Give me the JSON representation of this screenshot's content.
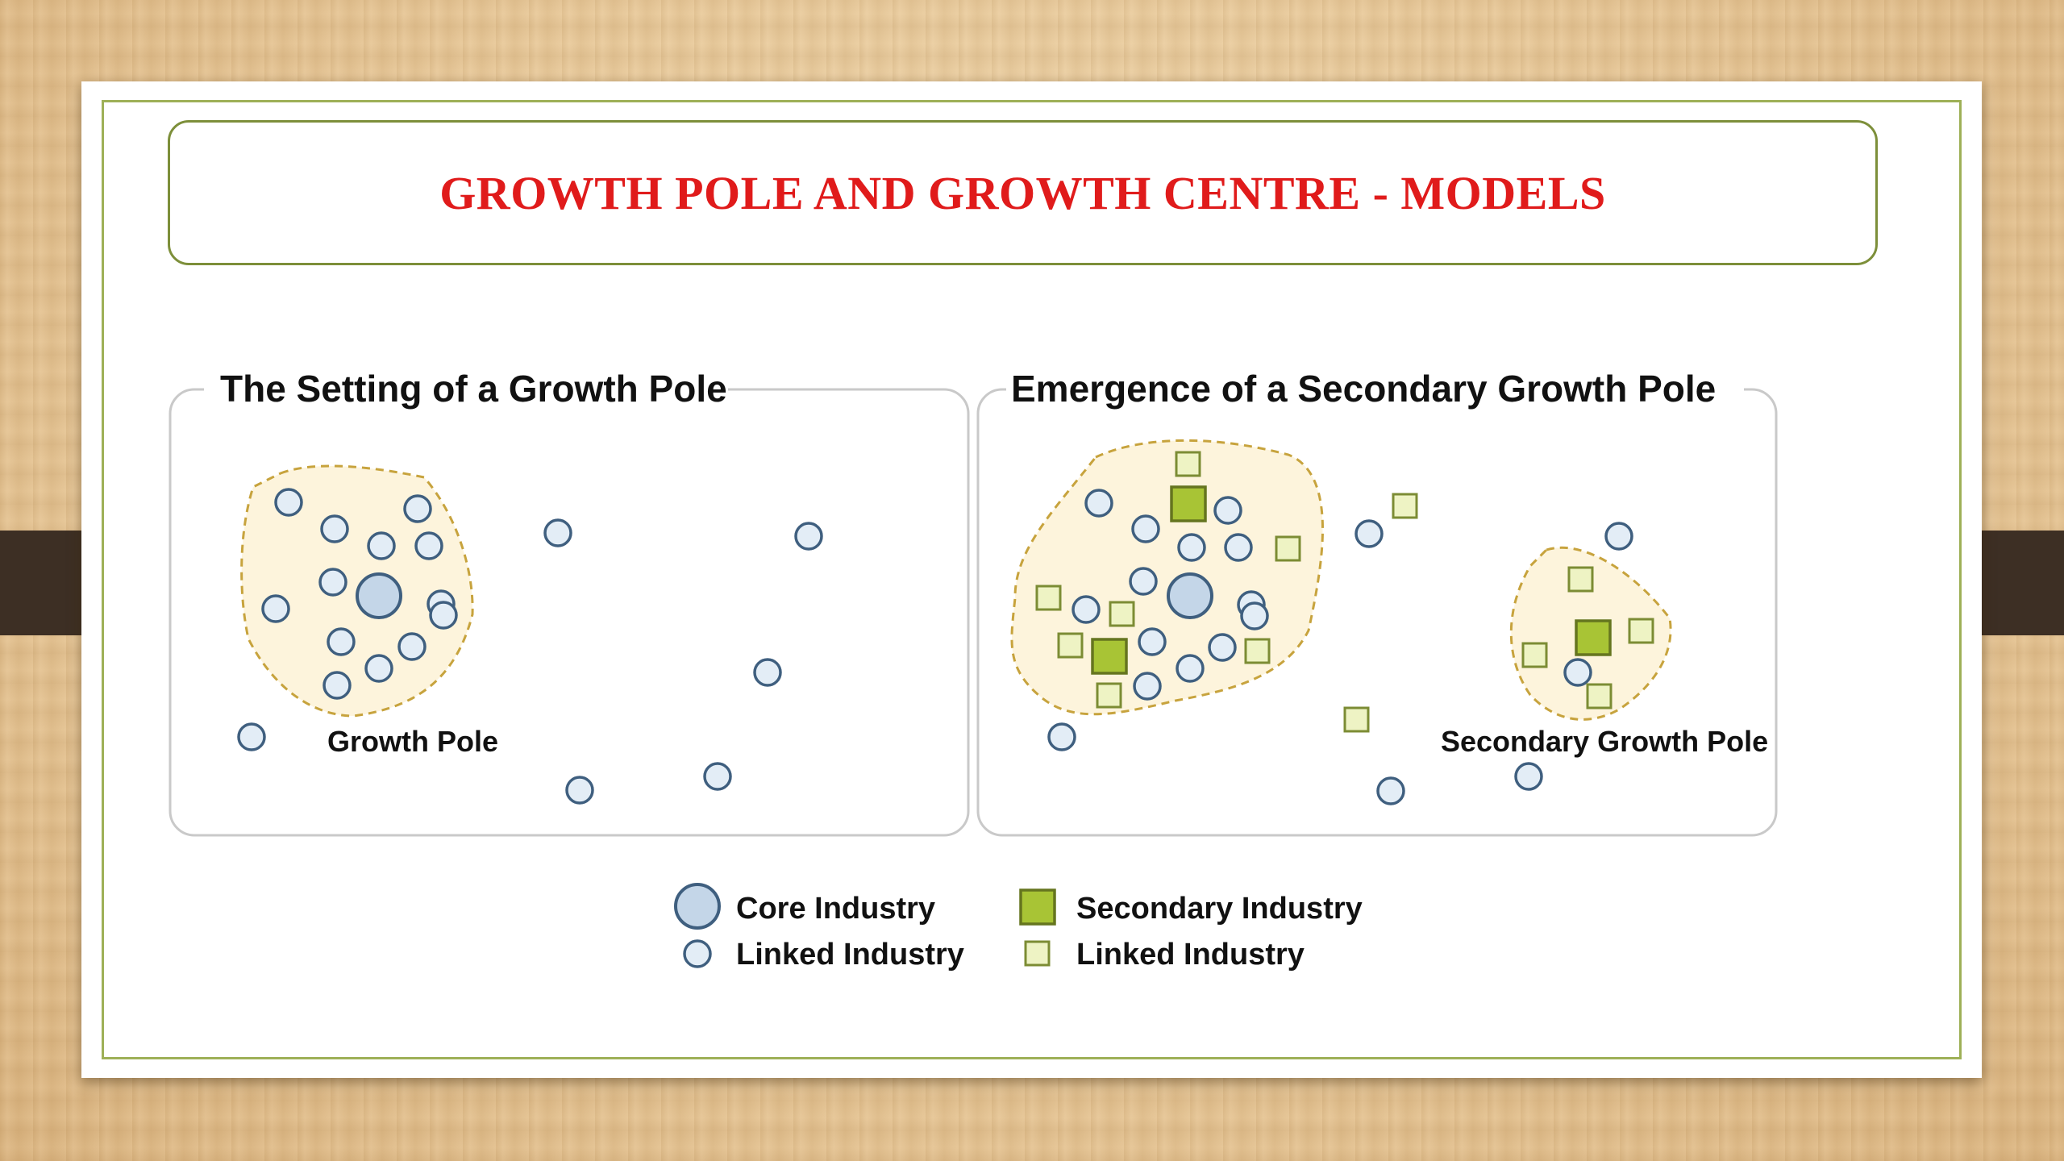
{
  "title": "GROWTH POLE AND GROWTH CENTRE - MODELS",
  "panels": [
    {
      "heading": "The Setting of a Growth Pole",
      "pole_label": "Growth Pole"
    },
    {
      "heading": "Emergence of a Secondary Growth Pole",
      "pole_label": "Secondary Growth Pole"
    }
  ],
  "legend": {
    "core_industry": "Core Industry",
    "linked_industry_circle": "Linked Industry",
    "secondary_industry": "Secondary Industry",
    "linked_industry_square": "Linked Industry"
  },
  "colors": {
    "title": "#e01b1b",
    "frame": "#9eb057",
    "circle_fill": "#e3edf6",
    "circle_stroke": "#3f5f7f",
    "core_fill": "#c4d6e8",
    "secondary_fill": "#a8c435",
    "linked_square_fill": "#eef3c4",
    "square_stroke": "#7c8c34",
    "pole_fill": "#fdf4dc",
    "pole_stroke": "#c7a33d"
  }
}
